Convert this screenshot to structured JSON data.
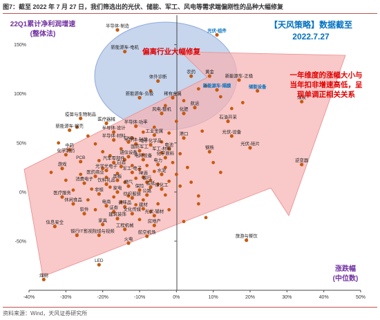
{
  "figure_title": "图7：截至 2022 年 7 月 27 日，我们筛选出的光伏、储能、军工、风电等需求端偏刚性的品种大幅修复",
  "source": "资料来源：Wind，天风证券研究所",
  "annotations": {
    "date_box_line1": "【天风策略】数据截至",
    "date_box_line2": "2022.7.27",
    "ellipse_label": "偏离行业大幅修复",
    "right_note_line1": "一年维度的涨幅大小与",
    "right_note_line2": "当年扣非增速高低，呈",
    "right_note_line3": "现单调正相关关系"
  },
  "colors": {
    "point": "#c55a11",
    "ellipse": "#b4c7e7",
    "arrow": "#f4b6b6",
    "ylabel": "#7030a0",
    "xlabel": "#7030a0",
    "red_text": "#e00000",
    "blue_text": "#0070c0",
    "highlight_label": "#0070c0"
  },
  "chart_data": {
    "type": "scatter",
    "ylabel_line1": "22Q1累计净利润增速",
    "ylabel_line2": "(整体法)",
    "xlabel_line1": "涨跌幅",
    "xlabel_line2": "(中位数)",
    "xlim": [
      -40,
      50
    ],
    "ylim": [
      -100,
      180
    ],
    "x_ticks": [
      "-40%",
      "-30%",
      "-20%",
      "-10%",
      "0%",
      "10%",
      "20%",
      "30%",
      "40%",
      "50%"
    ],
    "y_ticks": [
      "-50%",
      "0%",
      "50%",
      "100%",
      "150%"
    ],
    "grid": false,
    "labeled_points": [
      {
        "name": "半导体-制造",
        "x": -16,
        "y": 165
      },
      {
        "name": "光伏-组件",
        "x": 11,
        "y": 160,
        "highlight": true
      },
      {
        "name": "新能源车-电机",
        "x": -14,
        "y": 143
      },
      {
        "name": "农药",
        "x": 4,
        "y": 118
      },
      {
        "name": "黄金",
        "x": 9,
        "y": 118
      },
      {
        "name": "新能源车-正极",
        "x": 17,
        "y": 114
      },
      {
        "name": "体外诊断",
        "x": -5,
        "y": 113
      },
      {
        "name": "新能源车-隔膜",
        "x": 11,
        "y": 104,
        "highlight": true
      },
      {
        "name": "储能设备",
        "x": 22,
        "y": 103,
        "highlight": true
      },
      {
        "name": "稀有金属",
        "x": -1,
        "y": 96
      },
      {
        "name": "新能源车-负极",
        "x": -10,
        "y": 96
      },
      {
        "name": "煤炭",
        "x": 34,
        "y": 92
      },
      {
        "name": "航运",
        "x": 5,
        "y": 86
      },
      {
        "name": "风电-整机",
        "x": -4,
        "y": 80
      },
      {
        "name": "化肥",
        "x": 2,
        "y": 80
      },
      {
        "name": "疫苗与生物制品",
        "x": -26,
        "y": 75
      },
      {
        "name": "医疗器械",
        "x": -19,
        "y": 70
      },
      {
        "name": "石油开采",
        "x": 14,
        "y": 72
      },
      {
        "name": "半导体-功率",
        "x": -11,
        "y": 67
      },
      {
        "name": "新能源车-钢壳",
        "x": -29,
        "y": 63
      },
      {
        "name": "半导体-设计",
        "x": -17,
        "y": 61
      },
      {
        "name": "工业金属",
        "x": -6,
        "y": 58
      },
      {
        "name": "光伏-设备",
        "x": 15,
        "y": 57
      },
      {
        "name": "港口",
        "x": 2,
        "y": 55
      },
      {
        "name": "半导体-材料",
        "x": -17,
        "y": 53
      },
      {
        "name": "CXO",
        "x": -13,
        "y": 51
      },
      {
        "name": "半导体-封装",
        "x": -11,
        "y": 49
      },
      {
        "name": "电子化学品",
        "x": -7,
        "y": 48
      },
      {
        "name": "光伏-硅片",
        "x": 20,
        "y": 45
      },
      {
        "name": "中药",
        "x": -29,
        "y": 43
      },
      {
        "name": "国防军工",
        "x": -10,
        "y": 42
      },
      {
        "name": "电池",
        "x": -2,
        "y": 44
      },
      {
        "name": "军工-材料",
        "x": -4,
        "y": 40
      },
      {
        "name": "钢铁",
        "x": 9,
        "y": 41
      },
      {
        "name": "化学制药",
        "x": -30,
        "y": 38
      },
      {
        "name": "通信设备",
        "x": -13,
        "y": 36
      },
      {
        "name": "化学原料",
        "x": -3,
        "y": 35
      },
      {
        "name": "电网设备",
        "x": -9,
        "y": 33
      },
      {
        "name": "PCB",
        "x": -26,
        "y": 31
      },
      {
        "name": "汽车零部件",
        "x": -17,
        "y": 30
      },
      {
        "name": "电力",
        "x": -5,
        "y": 28
      },
      {
        "name": "逆变器",
        "x": 34,
        "y": 28
      },
      {
        "name": "白酒",
        "x": -15,
        "y": 26
      },
      {
        "name": "游戏",
        "x": -31,
        "y": 24
      },
      {
        "name": "光学光电子",
        "x": -19,
        "y": 22
      },
      {
        "name": "军工-电子",
        "x": -12,
        "y": 20
      },
      {
        "name": "水泥",
        "x": -4,
        "y": 18
      },
      {
        "name": "医药商业",
        "x": -22,
        "y": 16
      },
      {
        "name": "啤酒",
        "x": -9,
        "y": 15
      },
      {
        "name": "面板",
        "x": -16,
        "y": 12
      },
      {
        "name": "银行",
        "x": -8,
        "y": 10
      },
      {
        "name": "消费电子",
        "x": -25,
        "y": 9
      },
      {
        "name": "饮料乳品",
        "x": -19,
        "y": 8
      },
      {
        "name": "燃气",
        "x": -13,
        "y": 6
      },
      {
        "name": "造纸",
        "x": -7,
        "y": 5
      },
      {
        "name": "煤化工",
        "x": -4,
        "y": 3
      },
      {
        "name": "保险",
        "x": -10,
        "y": 2
      },
      {
        "name": "家电",
        "x": -16,
        "y": 0
      },
      {
        "name": "非银",
        "x": -21,
        "y": -2
      },
      {
        "name": "公路",
        "x": -8,
        "y": -3
      },
      {
        "name": "医疗服务",
        "x": -31,
        "y": -5
      },
      {
        "name": "纺织服装",
        "x": -12,
        "y": -6
      },
      {
        "name": "休闲食品",
        "x": -28,
        "y": -12
      },
      {
        "name": "电商",
        "x": -19,
        "y": -14
      },
      {
        "name": "调味品",
        "x": -14,
        "y": -15
      },
      {
        "name": "建材",
        "x": -9,
        "y": -17
      },
      {
        "name": "证券",
        "x": -17,
        "y": -20
      },
      {
        "name": "文化传媒",
        "x": -12,
        "y": -22
      },
      {
        "name": "软件",
        "x": -25,
        "y": -22
      },
      {
        "name": "光伏-辅材",
        "x": -6,
        "y": -24
      },
      {
        "name": "建筑装饰",
        "x": -16,
        "y": -27
      },
      {
        "name": "信息安全",
        "x": -33,
        "y": -35
      },
      {
        "name": "房地产",
        "x": -6,
        "y": -34
      },
      {
        "name": "家具",
        "x": -20,
        "y": -33
      },
      {
        "name": "工程机械",
        "x": -14,
        "y": -38
      },
      {
        "name": "航空机场",
        "x": -8,
        "y": -45
      },
      {
        "name": "影视院线与视频",
        "x": -21,
        "y": -44
      },
      {
        "name": "旅游与餐饮",
        "x": 19,
        "y": -49
      },
      {
        "name": "火电",
        "x": -13,
        "y": -52
      },
      {
        "name": "银行IT",
        "x": -27,
        "y": -44
      },
      {
        "name": "LED",
        "x": -21,
        "y": -74
      },
      {
        "name": "煤倒",
        "x": -36,
        "y": -89
      }
    ],
    "unlabeled_points": [
      {
        "x": -24,
        "y": 57
      },
      {
        "x": -22,
        "y": 49
      },
      {
        "x": -20,
        "y": 41
      },
      {
        "x": -18,
        "y": 37
      },
      {
        "x": -15,
        "y": 44
      },
      {
        "x": -14,
        "y": 33
      },
      {
        "x": -12,
        "y": 27
      },
      {
        "x": -11,
        "y": 14
      },
      {
        "x": -10,
        "y": 23
      },
      {
        "x": -9,
        "y": 38
      },
      {
        "x": -8,
        "y": 27
      },
      {
        "x": -7,
        "y": 12
      },
      {
        "x": -6,
        "y": 21
      },
      {
        "x": -5,
        "y": 8
      },
      {
        "x": -3,
        "y": 25
      },
      {
        "x": -2,
        "y": 11
      },
      {
        "x": -1,
        "y": 30
      },
      {
        "x": 0,
        "y": 18
      },
      {
        "x": 1,
        "y": 6
      },
      {
        "x": -20,
        "y": 24
      },
      {
        "x": -19,
        "y": 15
      },
      {
        "x": -18,
        "y": 5
      },
      {
        "x": -17,
        "y": -5
      },
      {
        "x": -15,
        "y": -10
      },
      {
        "x": -13,
        "y": -4
      },
      {
        "x": -11,
        "y": -13
      },
      {
        "x": -10,
        "y": -28
      },
      {
        "x": -9,
        "y": -8
      },
      {
        "x": -7,
        "y": -20
      },
      {
        "x": -5,
        "y": -12
      },
      {
        "x": -3,
        "y": -3
      },
      {
        "x": -2,
        "y": -18
      },
      {
        "x": -23,
        "y": 3
      },
      {
        "x": -24,
        "y": -8
      },
      {
        "x": -22,
        "y": -18
      },
      {
        "x": -21,
        "y": 32
      },
      {
        "x": -16,
        "y": 19
      },
      {
        "x": -14,
        "y": 10
      },
      {
        "x": -12,
        "y": 55
      },
      {
        "x": -9,
        "y": 61
      },
      {
        "x": -6,
        "y": 66
      },
      {
        "x": -4,
        "y": 51
      },
      {
        "x": -2,
        "y": 60
      },
      {
        "x": 1,
        "y": 39
      },
      {
        "x": 3,
        "y": 25
      },
      {
        "x": 4,
        "y": 10
      },
      {
        "x": 6,
        "y": -4
      },
      {
        "x": -26,
        "y": 18
      },
      {
        "x": -28,
        "y": 2
      },
      {
        "x": -30,
        "y": 12
      },
      {
        "x": -34,
        "y": 20
      },
      {
        "x": -32,
        "y": 50
      },
      {
        "x": -27,
        "y": 66
      },
      {
        "x": 8,
        "y": 108
      },
      {
        "x": 12,
        "y": 97
      },
      {
        "x": 18,
        "y": 91
      },
      {
        "x": -3,
        "y": 88
      },
      {
        "x": 6,
        "y": 105
      },
      {
        "x": 15,
        "y": 85
      },
      {
        "x": -7,
        "y": 103
      },
      {
        "x": 2,
        "y": 93
      },
      {
        "x": 0,
        "y": 72
      },
      {
        "x": 7,
        "y": 62
      },
      {
        "x": 10,
        "y": 30
      },
      {
        "x": 12,
        "y": 20
      },
      {
        "x": 6,
        "y": -12
      },
      {
        "x": 8,
        "y": -26
      },
      {
        "x": 2,
        "y": -30
      }
    ]
  }
}
